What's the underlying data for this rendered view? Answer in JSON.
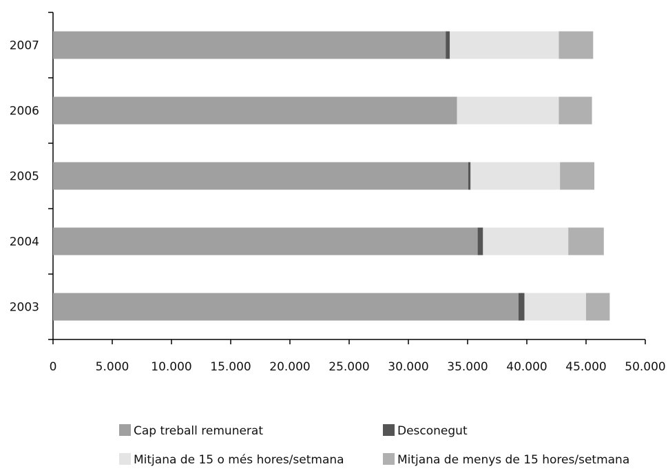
{
  "chart_data": {
    "type": "bar",
    "orientation": "horizontal",
    "stacked": true,
    "title": "",
    "xlabel": "",
    "ylabel": "",
    "categories": [
      "2007",
      "2006",
      "2005",
      "2004",
      "2003"
    ],
    "xlim": [
      0,
      50000
    ],
    "x_ticks": [
      0,
      5000,
      10000,
      15000,
      20000,
      25000,
      30000,
      35000,
      40000,
      45000,
      50000
    ],
    "x_tick_labels": [
      "0",
      "5.000",
      "10.000",
      "15.000",
      "20.000",
      "25.000",
      "30.000",
      "35.000",
      "40.000",
      "45.000",
      "50.000"
    ],
    "grid": false,
    "legend_position": "bottom",
    "series": [
      {
        "name": "Cap treball remunerat",
        "color": "#a0a0a0",
        "values": [
          33150,
          34100,
          35050,
          35850,
          39300
        ]
      },
      {
        "name": "Desconegut",
        "color": "#555555",
        "values": [
          350,
          0,
          200,
          450,
          500
        ]
      },
      {
        "name": "Mitjana de 15 o més hores/setmana",
        "color": "#e4e4e4",
        "values": [
          9200,
          8600,
          7550,
          7200,
          5200
        ]
      },
      {
        "name": "Mitjana de menys de 15 hores/setmana",
        "color": "#b0b0b0",
        "values": [
          2900,
          2800,
          2900,
          3000,
          2000
        ]
      }
    ]
  }
}
